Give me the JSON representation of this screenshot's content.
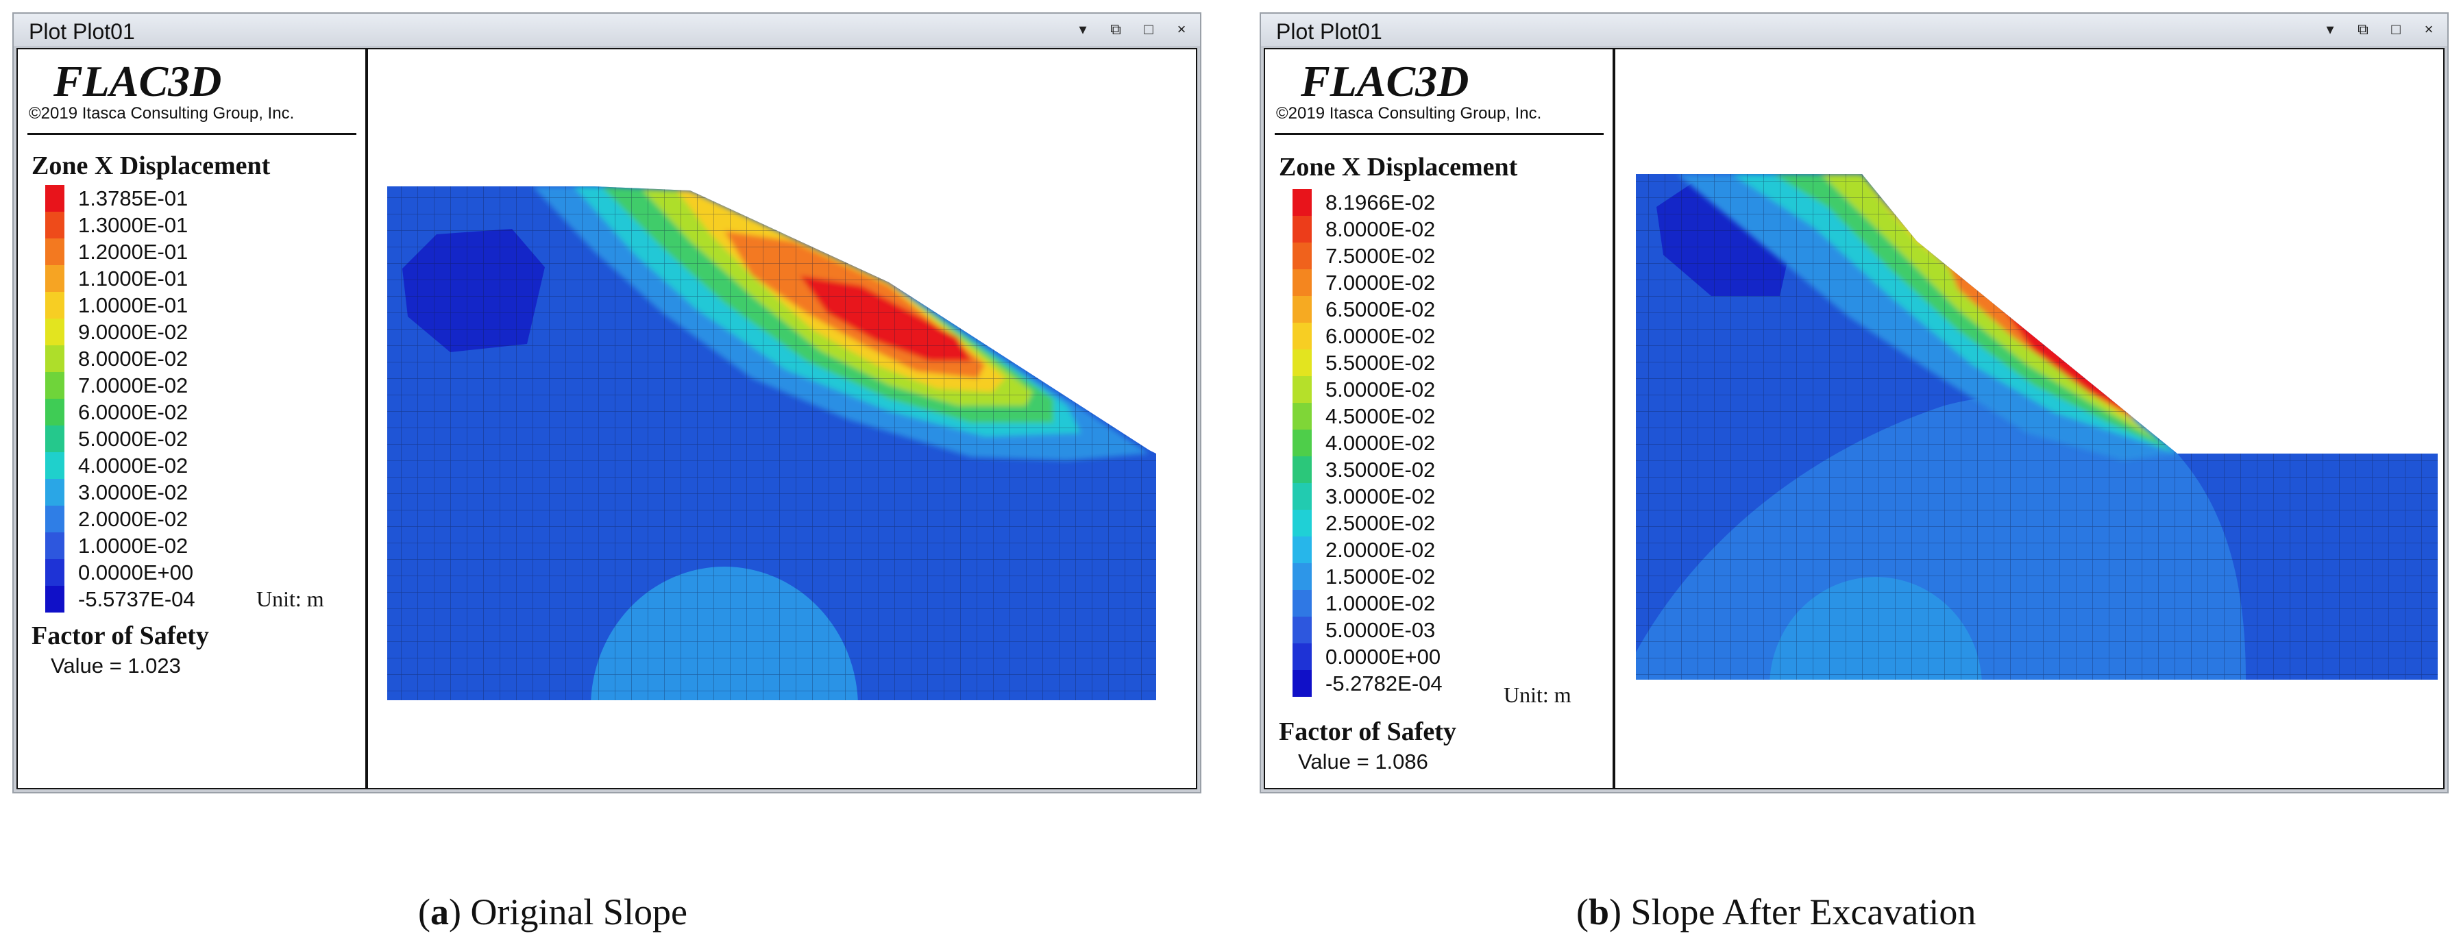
{
  "panels": [
    {
      "id": "a",
      "window_title": "Plot Plot01",
      "app_name": "FLAC3D",
      "copyright": "©2019 Itasca Consulting Group, Inc.",
      "legend_title": "Zone X Displacement",
      "legend": [
        {
          "label": "1.3785E-01",
          "color": "#e8141b"
        },
        {
          "label": "1.3000E-01",
          "color": "#ee4b1a"
        },
        {
          "label": "1.2000E-01",
          "color": "#f37920"
        },
        {
          "label": "1.1000E-01",
          "color": "#f6a423"
        },
        {
          "label": "1.0000E-01",
          "color": "#f7ce23"
        },
        {
          "label": "9.0000E-02",
          "color": "#e3e41f"
        },
        {
          "label": "8.0000E-02",
          "color": "#aede2a"
        },
        {
          "label": "7.0000E-02",
          "color": "#6fd43a"
        },
        {
          "label": "6.0000E-02",
          "color": "#3fcc55"
        },
        {
          "label": "5.0000E-02",
          "color": "#25c88c"
        },
        {
          "label": "4.0000E-02",
          "color": "#1fd0cc"
        },
        {
          "label": "3.0000E-02",
          "color": "#2aa6e6"
        },
        {
          "label": "2.0000E-02",
          "color": "#2f7ee6"
        },
        {
          "label": "1.0000E-02",
          "color": "#2d57de"
        },
        {
          "label": "0.0000E+00",
          "color": "#1e33d6"
        },
        {
          "label": "-5.5737E-04",
          "color": "#1010c8"
        }
      ],
      "unit": "Unit: m",
      "fos_title": "Factor of Safety",
      "fos_value": "Value = 1.023",
      "caption_letter": "a",
      "caption_text": " Original Slope"
    },
    {
      "id": "b",
      "window_title": "Plot Plot01",
      "app_name": "FLAC3D",
      "copyright": "©2019 Itasca Consulting Group, Inc.",
      "legend_title": "Zone X Displacement",
      "legend": [
        {
          "label": "8.1966E-02",
          "color": "#e8141b"
        },
        {
          "label": "8.0000E-02",
          "color": "#ec3d1a"
        },
        {
          "label": "7.5000E-02",
          "color": "#f0621c"
        },
        {
          "label": "7.0000E-02",
          "color": "#f4861f"
        },
        {
          "label": "6.5000E-02",
          "color": "#f6aa22"
        },
        {
          "label": "6.0000E-02",
          "color": "#f7ce23"
        },
        {
          "label": "5.5000E-02",
          "color": "#e3e41f"
        },
        {
          "label": "5.0000E-02",
          "color": "#b5e02a"
        },
        {
          "label": "4.5000E-02",
          "color": "#7fd637"
        },
        {
          "label": "4.0000E-02",
          "color": "#4ece4a"
        },
        {
          "label": "3.5000E-02",
          "color": "#2bc77a"
        },
        {
          "label": "3.0000E-02",
          "color": "#22cbb0"
        },
        {
          "label": "2.5000E-02",
          "color": "#1fd0d6"
        },
        {
          "label": "2.0000E-02",
          "color": "#27b6ea"
        },
        {
          "label": "1.5000E-02",
          "color": "#2d96e8"
        },
        {
          "label": "1.0000E-02",
          "color": "#2f78e4"
        },
        {
          "label": "5.0000E-03",
          "color": "#2d57de"
        },
        {
          "label": "0.0000E+00",
          "color": "#1e33d6"
        },
        {
          "label": "-5.2782E-04",
          "color": "#1010c8"
        }
      ],
      "unit": "Unit: m",
      "fos_title": "Factor of Safety",
      "fos_value": "Value = 1.086",
      "caption_letter": "b",
      "caption_text": " Slope After Excavation"
    }
  ]
}
